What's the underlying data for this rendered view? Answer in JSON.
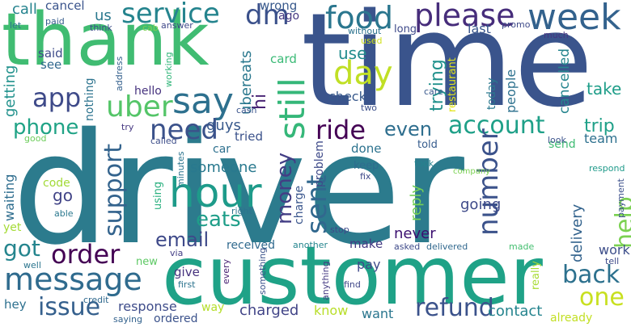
{
  "words": [
    {
      "text": "driver",
      "color": "#2c7b8d"
    },
    {
      "text": "time",
      "color": "#3a548c"
    },
    {
      "text": "customer",
      "color": "#1fa287"
    },
    {
      "text": "thank",
      "color": "#40bc72"
    },
    {
      "text": "week",
      "color": "#33628d"
    },
    {
      "text": "please",
      "color": "#472d7b"
    },
    {
      "text": "food",
      "color": "#2a768e"
    },
    {
      "text": "service",
      "color": "#25848e"
    },
    {
      "text": "dm",
      "color": "#3b518b"
    },
    {
      "text": "day",
      "color": "#c0df25"
    },
    {
      "text": "say",
      "color": "#2d708e"
    },
    {
      "text": "uber",
      "color": "#54c568"
    },
    {
      "text": "app",
      "color": "#3e4a89"
    },
    {
      "text": "hour",
      "color": "#1e9b8a"
    },
    {
      "text": "need",
      "color": "#3b528b"
    },
    {
      "text": "still",
      "color": "#35b779"
    },
    {
      "text": "ride",
      "color": "#440154"
    },
    {
      "text": "phone",
      "color": "#20a386"
    },
    {
      "text": "support",
      "color": "#33638d"
    },
    {
      "text": "account",
      "color": "#1fa088"
    },
    {
      "text": "even",
      "color": "#2e6e8e"
    },
    {
      "text": "number",
      "color": "#3b528b"
    },
    {
      "text": "help",
      "color": "#7ad151"
    },
    {
      "text": "back",
      "color": "#2d718e"
    },
    {
      "text": "message",
      "color": "#2f6b8e"
    },
    {
      "text": "order",
      "color": "#440154"
    },
    {
      "text": "email",
      "color": "#3e4989"
    },
    {
      "text": "sent",
      "color": "#31688e"
    },
    {
      "text": "money",
      "color": "#433e85"
    },
    {
      "text": "eats",
      "color": "#1f9e89"
    },
    {
      "text": "issue",
      "color": "#35608d"
    },
    {
      "text": "refund",
      "color": "#3b528b"
    },
    {
      "text": "one",
      "color": "#c8e020"
    },
    {
      "text": "got",
      "color": "#25858e"
    },
    {
      "text": "trip",
      "color": "#1fa088"
    },
    {
      "text": "cancel",
      "color": "#3a548c"
    },
    {
      "text": "call",
      "color": "#25838e"
    },
    {
      "text": "us",
      "color": "#2a788e"
    },
    {
      "text": "wrong",
      "color": "#38598c"
    },
    {
      "text": "let",
      "color": "#2a768e"
    },
    {
      "text": "paid",
      "color": "#365c8d"
    },
    {
      "text": "think",
      "color": "#3d4d8a"
    },
    {
      "text": "cab",
      "color": "#7ad151"
    },
    {
      "text": "answer",
      "color": "#3f4889"
    },
    {
      "text": "ago",
      "color": "#453882"
    },
    {
      "text": "without",
      "color": "#2c738e"
    },
    {
      "text": "long",
      "color": "#3e4989"
    },
    {
      "text": "used",
      "color": "#d0e11c"
    },
    {
      "text": "use",
      "color": "#228c8d"
    },
    {
      "text": "said",
      "color": "#3e4c8a"
    },
    {
      "text": "see",
      "color": "#31688e"
    },
    {
      "text": "card",
      "color": "#3aba76"
    },
    {
      "text": "trying",
      "color": "#21918c"
    },
    {
      "text": "restaurant",
      "color": "#e2e418"
    },
    {
      "text": "last",
      "color": "#39558c"
    },
    {
      "text": "promo",
      "color": "#3e4a89"
    },
    {
      "text": "much",
      "color": "#463480"
    },
    {
      "text": "getting",
      "color": "#21918c"
    },
    {
      "text": "nothing",
      "color": "#2c738e"
    },
    {
      "text": "working",
      "color": "#32b67a"
    },
    {
      "text": "address",
      "color": "#34608d"
    },
    {
      "text": "ubereats",
      "color": "#2a788e"
    },
    {
      "text": "hi",
      "color": "#482374"
    },
    {
      "text": "hello",
      "color": "#46327e"
    },
    {
      "text": "check",
      "color": "#38598c"
    },
    {
      "text": "two",
      "color": "#3c4f8a"
    },
    {
      "text": "care",
      "color": "#38588c"
    },
    {
      "text": "today",
      "color": "#2a788e"
    },
    {
      "text": "people",
      "color": "#2d718e"
    },
    {
      "text": "cancelled",
      "color": "#25858e"
    },
    {
      "text": "take",
      "color": "#1f9e89"
    },
    {
      "text": "guys",
      "color": "#38598c"
    },
    {
      "text": "cash",
      "color": "#3a548c"
    },
    {
      "text": "called",
      "color": "#3d4e8a"
    },
    {
      "text": "tried",
      "color": "#3b528b"
    },
    {
      "text": "problem",
      "color": "#3e4a89"
    },
    {
      "text": "done",
      "color": "#2c728e"
    },
    {
      "text": "told",
      "color": "#365c8d"
    },
    {
      "text": "send",
      "color": "#3fbc73"
    },
    {
      "text": "look",
      "color": "#3b528b"
    },
    {
      "text": "team",
      "color": "#2d708e"
    },
    {
      "text": "good",
      "color": "#6ccd5a"
    },
    {
      "text": "try",
      "color": "#453781"
    },
    {
      "text": "car",
      "color": "#2d708e"
    },
    {
      "text": "someone",
      "color": "#29798e"
    },
    {
      "text": "delivery",
      "color": "#33638d"
    },
    {
      "text": "waiting",
      "color": "#2e6d8e"
    },
    {
      "text": "code",
      "color": "#a2da37"
    },
    {
      "text": "go",
      "color": "#414487"
    },
    {
      "text": "minutes",
      "color": "#2b748e"
    },
    {
      "text": "charge",
      "color": "#39558c"
    },
    {
      "text": "keep",
      "color": "#2f6c8e"
    },
    {
      "text": "fix",
      "color": "#3e4989"
    },
    {
      "text": "took",
      "color": "#26828e"
    },
    {
      "text": "reply",
      "color": "#74d055"
    },
    {
      "text": "company",
      "color": "#7ad151"
    },
    {
      "text": "respond",
      "color": "#1f9a8a"
    },
    {
      "text": "going",
      "color": "#3e4a89"
    },
    {
      "text": "able",
      "color": "#2a788e"
    },
    {
      "text": "using",
      "color": "#2ab07f"
    },
    {
      "text": "right",
      "color": "#2c738e"
    },
    {
      "text": "payment",
      "color": "#3c508b"
    },
    {
      "text": "yet",
      "color": "#a5db36"
    },
    {
      "text": "received",
      "color": "#306a8e"
    },
    {
      "text": "stop",
      "color": "#3e4989"
    },
    {
      "text": "never",
      "color": "#3b0f70"
    },
    {
      "text": "work",
      "color": "#3d4e8a"
    },
    {
      "text": "well",
      "color": "#2b758e"
    },
    {
      "text": "new",
      "color": "#5cc863"
    },
    {
      "text": "via",
      "color": "#433e85"
    },
    {
      "text": "another",
      "color": "#25858e"
    },
    {
      "text": "make",
      "color": "#443a83"
    },
    {
      "text": "asked",
      "color": "#3e4a89"
    },
    {
      "text": "delivered",
      "color": "#31688e"
    },
    {
      "text": "made",
      "color": "#44bf70"
    },
    {
      "text": "give",
      "color": "#46327e"
    },
    {
      "text": "every",
      "color": "#482173"
    },
    {
      "text": "first",
      "color": "#2c738e"
    },
    {
      "text": "something",
      "color": "#3b528b"
    },
    {
      "text": "anything",
      "color": "#443a83"
    },
    {
      "text": "pay",
      "color": "#3e4989"
    },
    {
      "text": "really",
      "color": "#a8db34"
    },
    {
      "text": "tell",
      "color": "#3e4a89"
    },
    {
      "text": "find",
      "color": "#3f4788"
    },
    {
      "text": "hey",
      "color": "#2d708e"
    },
    {
      "text": "credit",
      "color": "#30698e"
    },
    {
      "text": "saying",
      "color": "#33628d"
    },
    {
      "text": "response",
      "color": "#3e4c8a"
    },
    {
      "text": "way",
      "color": "#b5de2b"
    },
    {
      "text": "ordered",
      "color": "#3b528b"
    },
    {
      "text": "charged",
      "color": "#414487"
    },
    {
      "text": "know",
      "color": "#b8de29"
    },
    {
      "text": "want",
      "color": "#2a768e"
    },
    {
      "text": "contact",
      "color": "#25848e"
    },
    {
      "text": "already",
      "color": "#c2df23"
    }
  ]
}
